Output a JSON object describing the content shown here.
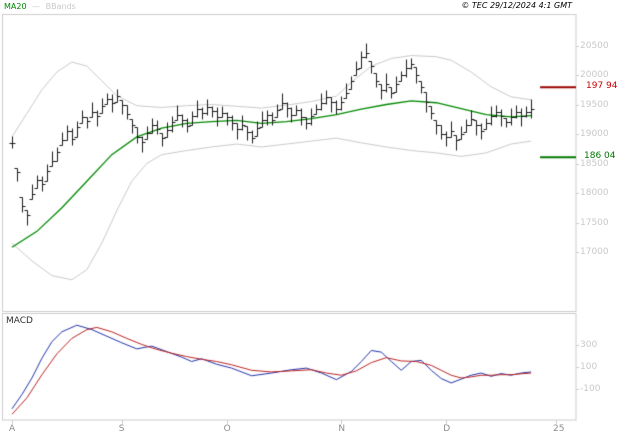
{
  "header": {
    "legend_ma20": "MA20",
    "legend_sep": "—",
    "legend_bbands": "BBands",
    "copyright": "© TEC 29/12/2024 4:1 GMT"
  },
  "colors": {
    "ma20": "#008800",
    "bbands": "#c9c9c9",
    "bars": "#1a1a1a",
    "macd_line": "#2233aa",
    "macd_signal": "#bb2222",
    "resistance": "#990000",
    "support": "#007700",
    "axis_text": "#c9c9c9",
    "month_text": "#8c8c8c",
    "border": "#cccccc"
  },
  "chart_data": {
    "type": "ohlc",
    "title": "",
    "x_axis": {
      "xlim": [
        -2,
        113
      ],
      "ticks": [
        {
          "label": "A",
          "day": 0
        },
        {
          "label": "S",
          "day": 22
        },
        {
          "label": "O",
          "day": 43
        },
        {
          "label": "N",
          "day": 66
        },
        {
          "label": "D",
          "day": 87
        },
        {
          "label": "25",
          "day": 109
        }
      ]
    },
    "price_panel": {
      "type": "ohlc",
      "ylim": [
        16000,
        21034
      ],
      "y_ticks": [
        20500,
        20000,
        19500,
        19000,
        18500,
        18000,
        17500,
        17000
      ],
      "close": [
        18850,
        18350,
        17780,
        17620,
        17980,
        18220,
        18150,
        18380,
        18550,
        18700,
        18900,
        19050,
        18920,
        19120,
        19280,
        19220,
        19380,
        19300,
        19480,
        19600,
        19520,
        19640,
        19500,
        19340,
        19150,
        18950,
        18870,
        19010,
        19160,
        19080,
        18940,
        19060,
        19210,
        19320,
        19240,
        19140,
        19310,
        19420,
        19350,
        19460,
        19390,
        19290,
        19360,
        19290,
        19180,
        19090,
        19160,
        19040,
        18930,
        19110,
        19230,
        19320,
        19240,
        19410,
        19520,
        19440,
        19330,
        19410,
        19290,
        19180,
        19310,
        19420,
        19530,
        19620,
        19540,
        19430,
        19550,
        19700,
        19900,
        20100,
        20300,
        20380,
        20150,
        19900,
        19750,
        19850,
        19700,
        19850,
        20000,
        20120,
        20180,
        20000,
        19800,
        19550,
        19350,
        19150,
        19000,
        18950,
        19050,
        18900,
        19000,
        19150,
        19250,
        19150,
        19050,
        19180,
        19300,
        19380,
        19300,
        19200,
        19280,
        19380,
        19300,
        19380,
        19420
      ],
      "wick_up": [
        120,
        80,
        150,
        100,
        170,
        90,
        130,
        110,
        160,
        85,
        140,
        95,
        180,
        105,
        125,
        75,
        155,
        115,
        135,
        90,
        165,
        120,
        80,
        150,
        100,
        170,
        90,
        130,
        110,
        160,
        85,
        140,
        95,
        180,
        105,
        125,
        75,
        155,
        115,
        135,
        90,
        165,
        120,
        80,
        150,
        100,
        170,
        90,
        130,
        110,
        160,
        85,
        140,
        95,
        180,
        105,
        125,
        75,
        155,
        115,
        135,
        90,
        165,
        120,
        80,
        150,
        100,
        170,
        90,
        130,
        110,
        160,
        85,
        140,
        95,
        180,
        105,
        125,
        75,
        155,
        115,
        135,
        90,
        165,
        120,
        80,
        150,
        100,
        170,
        90,
        130,
        110,
        160,
        85,
        140,
        95,
        180,
        105,
        125,
        75,
        155,
        115,
        135,
        90,
        165
      ],
      "wick_down": [
        90,
        140,
        100,
        160,
        80,
        130,
        110,
        170,
        95,
        150,
        85,
        145,
        105,
        175,
        90,
        120,
        100,
        160,
        130,
        90,
        140,
        100,
        160,
        80,
        130,
        110,
        170,
        95,
        150,
        85,
        145,
        105,
        175,
        90,
        120,
        100,
        160,
        130,
        90,
        140,
        100,
        160,
        80,
        130,
        110,
        170,
        95,
        150,
        85,
        145,
        105,
        175,
        90,
        120,
        100,
        160,
        130,
        90,
        140,
        100,
        160,
        80,
        130,
        110,
        170,
        95,
        150,
        85,
        145,
        105,
        175,
        90,
        120,
        100,
        160,
        130,
        90,
        140,
        100,
        160,
        80,
        130,
        110,
        170,
        95,
        150,
        85,
        145,
        105,
        175,
        90,
        120,
        100,
        160,
        130,
        90,
        140,
        100,
        160,
        80,
        130,
        110,
        170,
        95,
        150
      ],
      "ma20_anchors": [
        [
          0,
          17080
        ],
        [
          5,
          17350
        ],
        [
          10,
          17750
        ],
        [
          15,
          18200
        ],
        [
          20,
          18650
        ],
        [
          25,
          18950
        ],
        [
          30,
          19100
        ],
        [
          35,
          19180
        ],
        [
          40,
          19210
        ],
        [
          45,
          19230
        ],
        [
          50,
          19180
        ],
        [
          55,
          19210
        ],
        [
          60,
          19260
        ],
        [
          65,
          19330
        ],
        [
          70,
          19420
        ],
        [
          75,
          19500
        ],
        [
          80,
          19560
        ],
        [
          85,
          19530
        ],
        [
          90,
          19430
        ],
        [
          95,
          19330
        ],
        [
          100,
          19290
        ],
        [
          104,
          19310
        ]
      ],
      "bb_upper_anchors": [
        [
          0,
          18950
        ],
        [
          3,
          19350
        ],
        [
          6,
          19750
        ],
        [
          9,
          20050
        ],
        [
          12,
          20220
        ],
        [
          15,
          20150
        ],
        [
          18,
          19900
        ],
        [
          21,
          19650
        ],
        [
          25,
          19480
        ],
        [
          30,
          19450
        ],
        [
          35,
          19480
        ],
        [
          40,
          19500
        ],
        [
          45,
          19470
        ],
        [
          50,
          19440
        ],
        [
          55,
          19490
        ],
        [
          60,
          19550
        ],
        [
          65,
          19640
        ],
        [
          68,
          19880
        ],
        [
          72,
          20150
        ],
        [
          76,
          20280
        ],
        [
          80,
          20330
        ],
        [
          85,
          20310
        ],
        [
          88,
          20250
        ],
        [
          92,
          20050
        ],
        [
          96,
          19800
        ],
        [
          100,
          19630
        ],
        [
          104,
          19580
        ]
      ],
      "bb_lower_anchors": [
        [
          0,
          17150
        ],
        [
          4,
          16850
        ],
        [
          8,
          16600
        ],
        [
          12,
          16530
        ],
        [
          15,
          16700
        ],
        [
          18,
          17150
        ],
        [
          21,
          17700
        ],
        [
          24,
          18200
        ],
        [
          27,
          18500
        ],
        [
          30,
          18650
        ],
        [
          35,
          18720
        ],
        [
          40,
          18780
        ],
        [
          45,
          18830
        ],
        [
          50,
          18780
        ],
        [
          55,
          18830
        ],
        [
          60,
          18880
        ],
        [
          65,
          18930
        ],
        [
          70,
          18850
        ],
        [
          75,
          18780
        ],
        [
          80,
          18720
        ],
        [
          85,
          18680
        ],
        [
          90,
          18620
        ],
        [
          95,
          18680
        ],
        [
          100,
          18830
        ],
        [
          104,
          18880
        ]
      ],
      "levels": {
        "resistance": {
          "value": 19794,
          "label": "197 94"
        },
        "support": {
          "value": 18604,
          "label": "186 04"
        }
      }
    },
    "macd_panel": {
      "type": "line",
      "label": "MACD",
      "ylim": [
        -382,
        591
      ],
      "y_ticks": [
        300,
        100,
        -100
      ],
      "macd_anchors": [
        [
          0,
          -280
        ],
        [
          2,
          -150
        ],
        [
          4,
          0
        ],
        [
          6,
          180
        ],
        [
          8,
          330
        ],
        [
          10,
          420
        ],
        [
          13,
          480
        ],
        [
          16,
          440
        ],
        [
          19,
          380
        ],
        [
          22,
          320
        ],
        [
          25,
          265
        ],
        [
          28,
          290
        ],
        [
          31,
          240
        ],
        [
          34,
          190
        ],
        [
          36,
          150
        ],
        [
          38,
          175
        ],
        [
          41,
          125
        ],
        [
          44,
          90
        ],
        [
          48,
          20
        ],
        [
          52,
          45
        ],
        [
          56,
          75
        ],
        [
          59,
          90
        ],
        [
          62,
          45
        ],
        [
          65,
          -15
        ],
        [
          68,
          60
        ],
        [
          70,
          150
        ],
        [
          72,
          250
        ],
        [
          74,
          235
        ],
        [
          76,
          150
        ],
        [
          78,
          70
        ],
        [
          80,
          150
        ],
        [
          82,
          160
        ],
        [
          84,
          70
        ],
        [
          86,
          -5
        ],
        [
          88,
          -45
        ],
        [
          90,
          -10
        ],
        [
          92,
          25
        ],
        [
          94,
          45
        ],
        [
          96,
          15
        ],
        [
          98,
          40
        ],
        [
          100,
          25
        ],
        [
          102,
          45
        ],
        [
          104,
          55
        ]
      ],
      "signal_anchors": [
        [
          0,
          -330
        ],
        [
          3,
          -180
        ],
        [
          6,
          30
        ],
        [
          9,
          220
        ],
        [
          12,
          360
        ],
        [
          15,
          440
        ],
        [
          17,
          460
        ],
        [
          20,
          420
        ],
        [
          23,
          360
        ],
        [
          26,
          305
        ],
        [
          29,
          260
        ],
        [
          32,
          225
        ],
        [
          35,
          195
        ],
        [
          38,
          170
        ],
        [
          41,
          150
        ],
        [
          44,
          120
        ],
        [
          48,
          70
        ],
        [
          52,
          55
        ],
        [
          56,
          65
        ],
        [
          60,
          75
        ],
        [
          63,
          45
        ],
        [
          66,
          25
        ],
        [
          69,
          65
        ],
        [
          72,
          140
        ],
        [
          75,
          185
        ],
        [
          78,
          155
        ],
        [
          81,
          150
        ],
        [
          84,
          115
        ],
        [
          86,
          70
        ],
        [
          88,
          25
        ],
        [
          90,
          0
        ],
        [
          92,
          10
        ],
        [
          94,
          25
        ],
        [
          96,
          25
        ],
        [
          98,
          30
        ],
        [
          100,
          30
        ],
        [
          102,
          38
        ],
        [
          104,
          45
        ]
      ]
    }
  }
}
